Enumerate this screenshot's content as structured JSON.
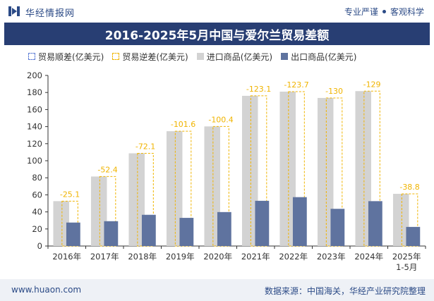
{
  "header": {
    "logo_text": "华经情报网",
    "tag_left": "专业严谨",
    "tag_right": "客观科学"
  },
  "title": "2016-2025年5月中国与爱尔兰贸易差额",
  "legend": {
    "surplus": "贸易顺差(亿美元)",
    "deficit": "贸易逆差(亿美元)",
    "import": "进口商品(亿美元)",
    "export": "出口商品(亿美元)"
  },
  "footer": {
    "website": "www.huaon.com",
    "source": "数据来源：中国海关，华经产业研究院整理"
  },
  "colors": {
    "title_bg": "#283e73",
    "import": "#d3d3d3",
    "export": "#5f739f",
    "deficit": "#f0b400",
    "surplus": "#5b7bd5"
  },
  "chart_data": {
    "type": "bar",
    "categories": [
      "2016年",
      "2017年",
      "2018年",
      "2019年",
      "2020年",
      "2021年",
      "2022年",
      "2023年",
      "2024年",
      "2025年\n1-5月"
    ],
    "series": [
      {
        "name": "进口商品(亿美元)",
        "values": [
          52.6,
          81.5,
          108.7,
          134.6,
          140.2,
          176.1,
          181.0,
          173.6,
          181.6,
          61.2
        ]
      },
      {
        "name": "出口商品(亿美元)",
        "values": [
          27.5,
          29.1,
          36.6,
          33.0,
          39.8,
          53.0,
          57.3,
          43.6,
          52.6,
          22.4
        ]
      },
      {
        "name": "贸易逆差(亿美元)",
        "values": [
          -25.1,
          -52.4,
          -72.1,
          -101.6,
          -100.4,
          -123.1,
          -123.7,
          -130,
          -129,
          -38.8
        ]
      }
    ],
    "ylim": [
      0,
      200
    ],
    "yticks": [
      0,
      20,
      40,
      60,
      80,
      100,
      120,
      140,
      160,
      180,
      200
    ],
    "grid": false,
    "legend_position": "top"
  }
}
